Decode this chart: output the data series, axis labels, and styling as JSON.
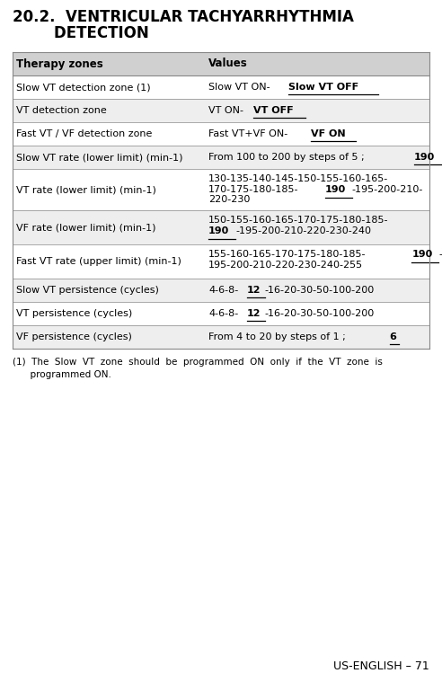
{
  "title_line1": "20.2.  VENTRICULAR TACHYARRHYTHMIA",
  "title_line2": "        DETECTION",
  "header_col1": "Therapy zones",
  "header_col2": "Values",
  "header_bg": "#d0d0d0",
  "rows": [
    {
      "col1": "Slow VT detection zone (1)",
      "col2_lines": [
        [
          {
            "text": "Slow VT ON-",
            "bold": false,
            "underline": false
          },
          {
            "text": "Slow VT OFF",
            "bold": true,
            "underline": true
          }
        ]
      ],
      "bg": "#ffffff"
    },
    {
      "col1": "VT detection zone",
      "col2_lines": [
        [
          {
            "text": "VT ON-",
            "bold": false,
            "underline": false
          },
          {
            "text": "VT OFF",
            "bold": true,
            "underline": true
          }
        ]
      ],
      "bg": "#eeeeee"
    },
    {
      "col1": "Fast VT / VF detection zone",
      "col2_lines": [
        [
          {
            "text": "Fast VT+VF ON-",
            "bold": false,
            "underline": false
          },
          {
            "text": "VF ON",
            "bold": true,
            "underline": true
          }
        ]
      ],
      "bg": "#ffffff"
    },
    {
      "col1": "Slow VT rate (lower limit) (min-1)",
      "col2_lines": [
        [
          {
            "text": "From 100 to 200 by steps of 5 ; ",
            "bold": false,
            "underline": false
          },
          {
            "text": "190",
            "bold": true,
            "underline": true
          }
        ]
      ],
      "bg": "#eeeeee"
    },
    {
      "col1": "VT rate (lower limit) (min-1)",
      "col2_lines": [
        [
          {
            "text": "130-135-140-145-150-155-160-165-",
            "bold": false,
            "underline": false
          }
        ],
        [
          {
            "text": "170-175-180-185-",
            "bold": false,
            "underline": false
          },
          {
            "text": "190",
            "bold": true,
            "underline": true
          },
          {
            "text": "-195-200-210-",
            "bold": false,
            "underline": false
          }
        ],
        [
          {
            "text": "220-230",
            "bold": false,
            "underline": false
          }
        ]
      ],
      "bg": "#ffffff"
    },
    {
      "col1": "VF rate (lower limit) (min-1)",
      "col2_lines": [
        [
          {
            "text": "150-155-160-165-170-175-180-185-",
            "bold": false,
            "underline": false
          }
        ],
        [
          {
            "text": "190",
            "bold": true,
            "underline": true
          },
          {
            "text": "-195-200-210-220-230-240",
            "bold": false,
            "underline": false
          }
        ]
      ],
      "bg": "#eeeeee"
    },
    {
      "col1": "Fast VT rate (upper limit) (min-1)",
      "col2_lines": [
        [
          {
            "text": "155-160-165-170-175-180-185-",
            "bold": false,
            "underline": false
          },
          {
            "text": "190",
            "bold": true,
            "underline": true
          },
          {
            "text": "-",
            "bold": false,
            "underline": false
          }
        ],
        [
          {
            "text": "195-200-210-220-230-240-255",
            "bold": false,
            "underline": false
          }
        ]
      ],
      "bg": "#ffffff"
    },
    {
      "col1": "Slow VT persistence (cycles)",
      "col2_lines": [
        [
          {
            "text": "4-6-8-",
            "bold": false,
            "underline": false
          },
          {
            "text": "12",
            "bold": true,
            "underline": true
          },
          {
            "text": "-16-20-30-50-100-200",
            "bold": false,
            "underline": false
          }
        ]
      ],
      "bg": "#eeeeee"
    },
    {
      "col1": "VT persistence (cycles)",
      "col2_lines": [
        [
          {
            "text": "4-6-8-",
            "bold": false,
            "underline": false
          },
          {
            "text": "12",
            "bold": true,
            "underline": true
          },
          {
            "text": "-16-20-30-50-100-200",
            "bold": false,
            "underline": false
          }
        ]
      ],
      "bg": "#ffffff"
    },
    {
      "col1": "VF persistence (cycles)",
      "col2_lines": [
        [
          {
            "text": "From 4 to 20 by steps of 1 ; ",
            "bold": false,
            "underline": false
          },
          {
            "text": "6",
            "bold": true,
            "underline": true
          }
        ]
      ],
      "bg": "#eeeeee"
    }
  ],
  "footnote_parts": [
    "(1)  The  Slow  VT  zone  should  be  programmed  ON  only  if  the  VT  zone  is",
    "      programmed ON."
  ],
  "page_label": "US-ENGLISH – 71",
  "bg_color": "#ffffff",
  "line_color": "#888888",
  "text_color": "#000000"
}
